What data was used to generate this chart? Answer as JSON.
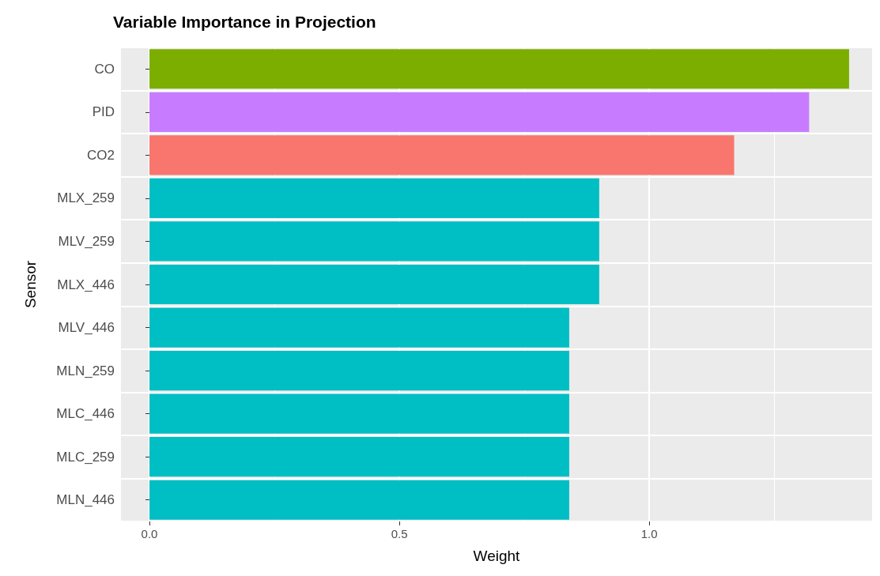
{
  "chart_data": {
    "type": "bar",
    "orientation": "horizontal",
    "title": "Variable Importance in Projection",
    "xlabel": "Weight",
    "ylabel": "Sensor",
    "categories": [
      "CO",
      "PID",
      "CO2",
      "MLX_259",
      "MLV_259",
      "MLX_446",
      "MLV_446",
      "MLN_259",
      "MLC_446",
      "MLC_259",
      "MLN_446"
    ],
    "values": [
      1.4,
      1.32,
      1.17,
      0.9,
      0.9,
      0.9,
      0.84,
      0.84,
      0.84,
      0.84,
      0.84
    ],
    "colors": [
      "#7cae00",
      "#c77cff",
      "#f8766d",
      "#00bfc4",
      "#00bfc4",
      "#00bfc4",
      "#00bfc4",
      "#00bfc4",
      "#00bfc4",
      "#00bfc4",
      "#00bfc4"
    ],
    "xlim": [
      -0.057,
      1.446
    ],
    "xticks": [
      {
        "value": 0,
        "label": "0.0"
      },
      {
        "value": 0.5,
        "label": "0.5"
      },
      {
        "value": 1,
        "label": "1.0"
      }
    ],
    "grid": true
  }
}
